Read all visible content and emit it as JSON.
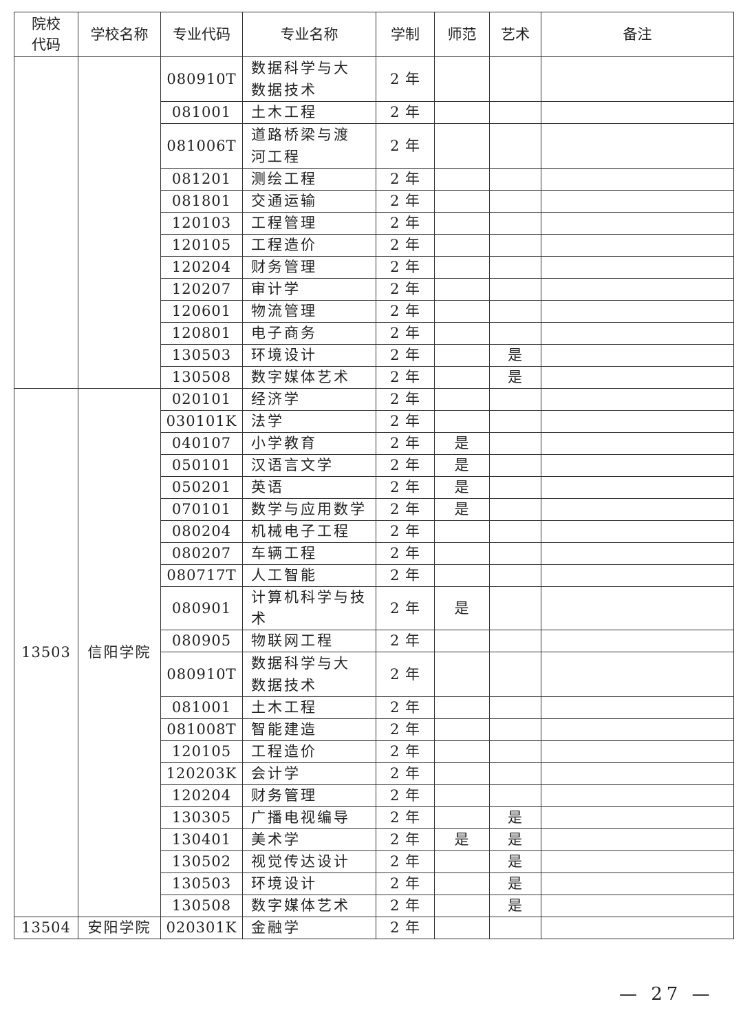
{
  "headers": [
    "院校代码",
    "学校名称",
    "专业代码",
    "专业名称",
    "学制",
    "师范",
    "艺术",
    "备注"
  ],
  "groups": [
    {
      "code": "",
      "school": "",
      "rows": [
        [
          "080910T",
          "数据科学与大数据技术",
          "2 年",
          "",
          "",
          ""
        ],
        [
          "081001",
          "土木工程",
          "2 年",
          "",
          "",
          ""
        ],
        [
          "081006T",
          "道路桥梁与渡河工程",
          "2 年",
          "",
          "",
          ""
        ],
        [
          "081201",
          "测绘工程",
          "2 年",
          "",
          "",
          ""
        ],
        [
          "081801",
          "交通运输",
          "2 年",
          "",
          "",
          ""
        ],
        [
          "120103",
          "工程管理",
          "2 年",
          "",
          "",
          ""
        ],
        [
          "120105",
          "工程造价",
          "2 年",
          "",
          "",
          ""
        ],
        [
          "120204",
          "财务管理",
          "2 年",
          "",
          "",
          ""
        ],
        [
          "120207",
          "审计学",
          "2 年",
          "",
          "",
          ""
        ],
        [
          "120601",
          "物流管理",
          "2 年",
          "",
          "",
          ""
        ],
        [
          "120801",
          "电子商务",
          "2 年",
          "",
          "",
          ""
        ],
        [
          "130503",
          "环境设计",
          "2 年",
          "",
          "是",
          ""
        ],
        [
          "130508",
          "数字媒体艺术",
          "2 年",
          "",
          "是",
          ""
        ]
      ]
    },
    {
      "code": "13503",
      "school": "信阳学院",
      "rows": [
        [
          "020101",
          "经济学",
          "2 年",
          "",
          "",
          ""
        ],
        [
          "030101K",
          "法学",
          "2 年",
          "",
          "",
          ""
        ],
        [
          "040107",
          "小学教育",
          "2 年",
          "是",
          "",
          ""
        ],
        [
          "050101",
          "汉语言文学",
          "2 年",
          "是",
          "",
          ""
        ],
        [
          "050201",
          "英语",
          "2 年",
          "是",
          "",
          ""
        ],
        [
          "070101",
          "数学与应用数学",
          "2 年",
          "是",
          "",
          ""
        ],
        [
          "080204",
          "机械电子工程",
          "2 年",
          "",
          "",
          ""
        ],
        [
          "080207",
          "车辆工程",
          "2 年",
          "",
          "",
          ""
        ],
        [
          "080717T",
          "人工智能",
          "2 年",
          "",
          "",
          ""
        ],
        [
          "080901",
          "计算机科学与技术",
          "2 年",
          "是",
          "",
          ""
        ],
        [
          "080905",
          "物联网工程",
          "2 年",
          "",
          "",
          ""
        ],
        [
          "080910T",
          "数据科学与大数据技术",
          "2 年",
          "",
          "",
          ""
        ],
        [
          "081001",
          "土木工程",
          "2 年",
          "",
          "",
          ""
        ],
        [
          "081008T",
          "智能建造",
          "2 年",
          "",
          "",
          ""
        ],
        [
          "120105",
          "工程造价",
          "2 年",
          "",
          "",
          ""
        ],
        [
          "120203K",
          "会计学",
          "2 年",
          "",
          "",
          ""
        ],
        [
          "120204",
          "财务管理",
          "2 年",
          "",
          "",
          ""
        ],
        [
          "130305",
          "广播电视编导",
          "2 年",
          "",
          "是",
          ""
        ],
        [
          "130401",
          "美术学",
          "2 年",
          "是",
          "是",
          ""
        ],
        [
          "130502",
          "视觉传达设计",
          "2 年",
          "",
          "是",
          ""
        ],
        [
          "130503",
          "环境设计",
          "2 年",
          "",
          "是",
          ""
        ],
        [
          "130508",
          "数字媒体艺术",
          "2 年",
          "",
          "是",
          ""
        ]
      ]
    },
    {
      "code": "13504",
      "school": "安阳学院",
      "rows": [
        [
          "020301K",
          "金融学",
          "2 年",
          "",
          "",
          ""
        ]
      ]
    }
  ],
  "page_number": "— 27 —"
}
